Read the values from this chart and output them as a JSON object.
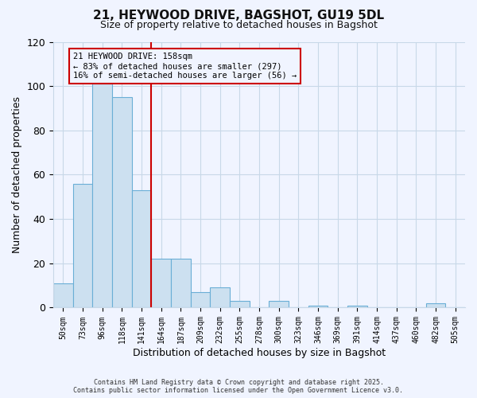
{
  "title": "21, HEYWOOD DRIVE, BAGSHOT, GU19 5DL",
  "subtitle": "Size of property relative to detached houses in Bagshot",
  "xlabel": "Distribution of detached houses by size in Bagshot",
  "ylabel": "Number of detached properties",
  "bar_labels": [
    "50sqm",
    "73sqm",
    "96sqm",
    "118sqm",
    "141sqm",
    "164sqm",
    "187sqm",
    "209sqm",
    "232sqm",
    "255sqm",
    "278sqm",
    "300sqm",
    "323sqm",
    "346sqm",
    "369sqm",
    "391sqm",
    "414sqm",
    "437sqm",
    "460sqm",
    "482sqm",
    "505sqm"
  ],
  "bar_values": [
    11,
    56,
    101,
    95,
    53,
    22,
    22,
    7,
    9,
    3,
    0,
    3,
    0,
    1,
    0,
    1,
    0,
    0,
    0,
    2,
    0
  ],
  "bar_color": "#cce0f0",
  "bar_edge_color": "#6aaed6",
  "ylim": [
    0,
    120
  ],
  "yticks": [
    0,
    20,
    40,
    60,
    80,
    100,
    120
  ],
  "property_line_x": 5.0,
  "property_line_color": "#cc0000",
  "annotation_title": "21 HEYWOOD DRIVE: 158sqm",
  "annotation_line1": "← 83% of detached houses are smaller (297)",
  "annotation_line2": "16% of semi-detached houses are larger (56) →",
  "footer_line1": "Contains HM Land Registry data © Crown copyright and database right 2025.",
  "footer_line2": "Contains public sector information licensed under the Open Government Licence v3.0.",
  "background_color": "#f0f4ff",
  "grid_color": "#c8d8e8"
}
